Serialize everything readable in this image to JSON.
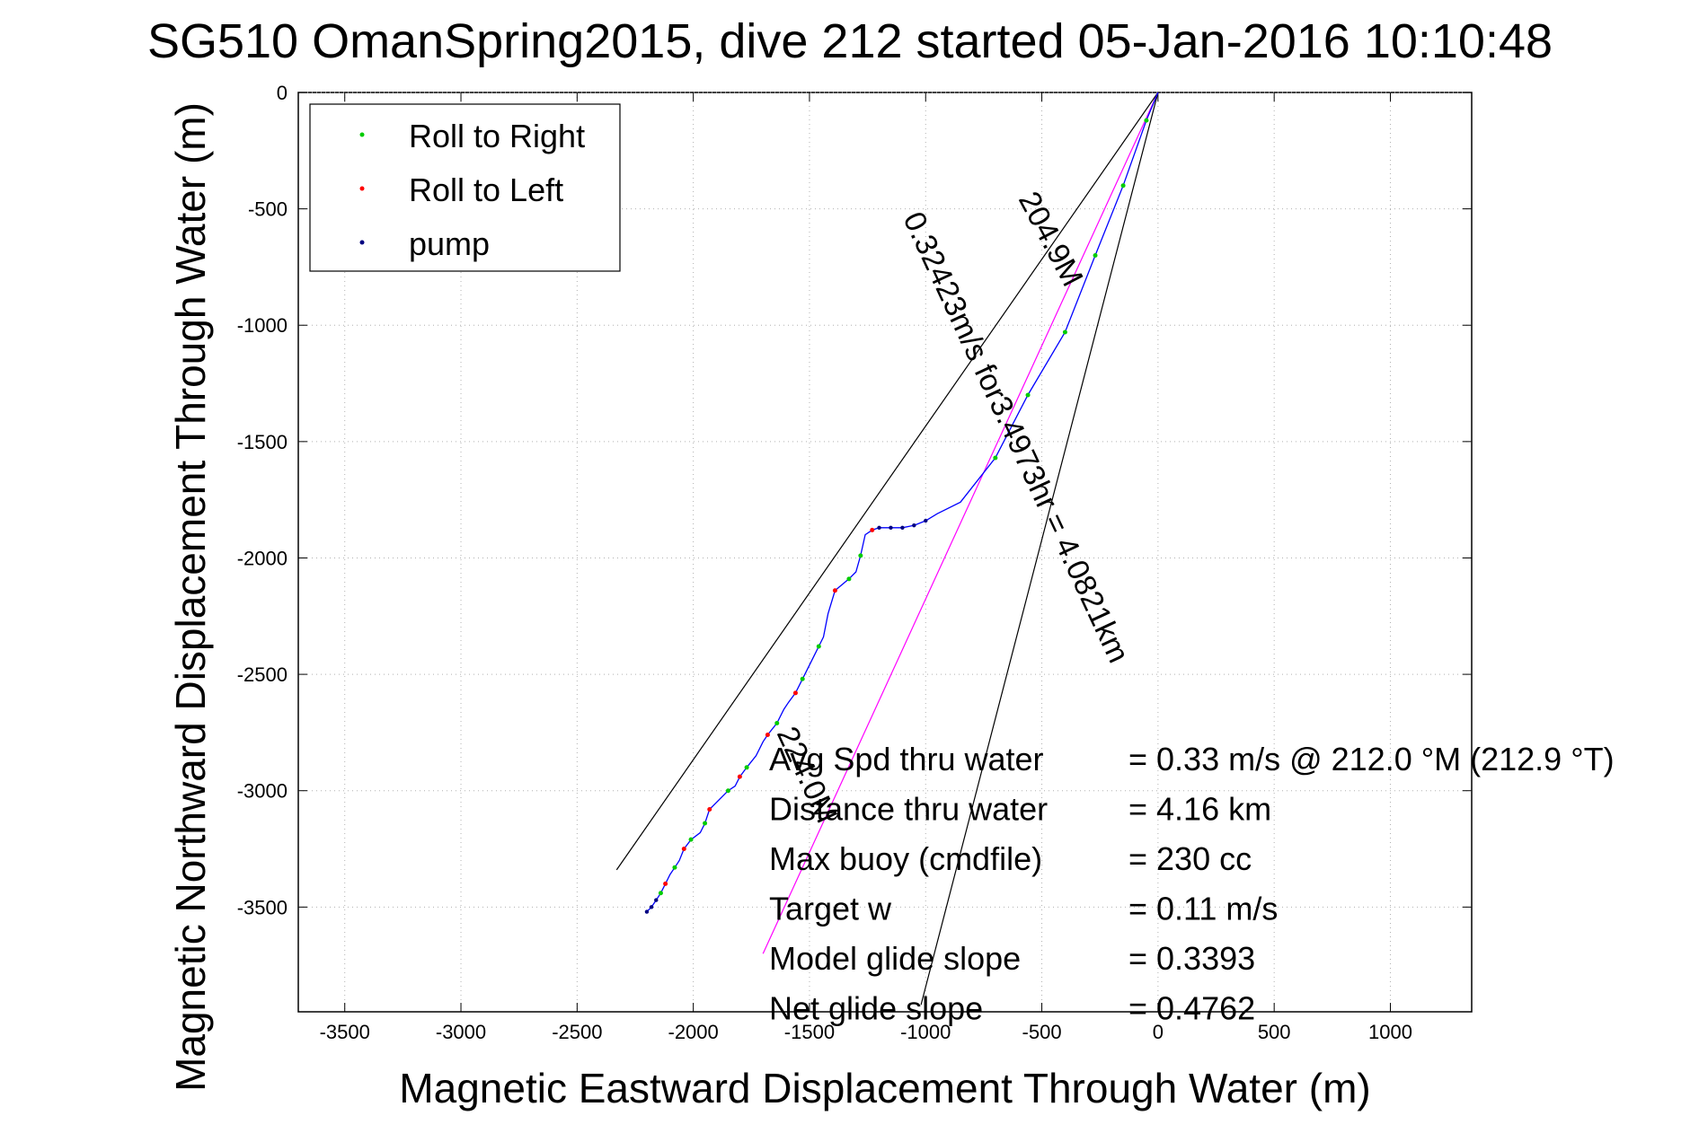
{
  "chart_data": {
    "type": "line",
    "title": "SG510 OmanSpring2015, dive 212 started 05-Jan-2016 10:10:48",
    "xlabel": "Magnetic Eastward Displacement Through Water (m)",
    "ylabel": "Magnetic Northward Displacement Through Water (m)",
    "xlim": [
      -3700,
      1350
    ],
    "ylim": [
      -3950,
      0
    ],
    "xticks": [
      -3500,
      -3000,
      -2500,
      -2000,
      -1500,
      -1000,
      -500,
      0,
      500,
      1000
    ],
    "yticks": [
      0,
      -500,
      -1000,
      -1500,
      -2000,
      -2500,
      -3000,
      -3500
    ],
    "grid": true,
    "legend_position": "top-left",
    "legend": [
      {
        "label": "Roll to Right",
        "color": "#00cc00"
      },
      {
        "label": "Roll to Left",
        "color": "#ff0000"
      },
      {
        "label": "pump",
        "color": "#000080"
      }
    ],
    "colors": {
      "track": "#0000ff",
      "heading_line": "#ff00ff",
      "cone_lines": "#000000",
      "roll_right": "#00cc00",
      "roll_left": "#ff0000",
      "pump": "#000080"
    },
    "track": {
      "x": [
        0,
        -50,
        -150,
        -270,
        -400,
        -560,
        -700,
        -850,
        -950,
        -1000,
        -1050,
        -1100,
        -1200,
        -1230,
        -1260,
        -1280,
        -1300,
        -1330,
        -1390,
        -1420,
        -1440,
        -1460,
        -1480,
        -1530,
        -1560,
        -1590,
        -1610,
        -1640,
        -1680,
        -1700,
        -1730,
        -1770,
        -1800,
        -1820,
        -1850,
        -1900,
        -1930,
        -1950,
        -1970,
        -2010,
        -2040,
        -2060,
        -2080,
        -2100,
        -2120,
        -2140,
        -2160,
        -2180,
        -2200
      ],
      "y": [
        0,
        -120,
        -400,
        -700,
        -1030,
        -1300,
        -1570,
        -1760,
        -1810,
        -1840,
        -1860,
        -1870,
        -1870,
        -1880,
        -1900,
        -1990,
        -2060,
        -2090,
        -2140,
        -2240,
        -2340,
        -2380,
        -2420,
        -2520,
        -2580,
        -2620,
        -2650,
        -2710,
        -2760,
        -2790,
        -2850,
        -2900,
        -2940,
        -2980,
        -3000,
        -3050,
        -3080,
        -3140,
        -3180,
        -3210,
        -3250,
        -3300,
        -3330,
        -3360,
        -3400,
        -3440,
        -3470,
        -3500,
        -3520
      ]
    },
    "roll_right_points": {
      "x": [
        -50,
        -150,
        -270,
        -400,
        -560,
        -700,
        -1280,
        -1330,
        -1460,
        -1530,
        -1640,
        -1770,
        -1850,
        -1950,
        -2010,
        -2080,
        -2140
      ],
      "y": [
        -120,
        -400,
        -700,
        -1030,
        -1300,
        -1570,
        -1990,
        -2090,
        -2380,
        -2520,
        -2710,
        -2900,
        -3000,
        -3140,
        -3210,
        -3330,
        -3440
      ]
    },
    "roll_left_points": {
      "x": [
        -1230,
        -1390,
        -1560,
        -1680,
        -1800,
        -1930,
        -2040,
        -2120
      ],
      "y": [
        -1880,
        -2140,
        -2580,
        -2760,
        -2940,
        -3080,
        -3250,
        -3400
      ]
    },
    "pump_points": {
      "x": [
        -1000,
        -1050,
        -1100,
        -1150,
        -1200,
        -2160,
        -2180,
        -2200
      ],
      "y": [
        -1840,
        -1860,
        -1870,
        -1870,
        -1870,
        -3470,
        -3500,
        -3520
      ]
    },
    "heading_line": {
      "x": [
        0,
        -1700
      ],
      "y": [
        0,
        -3700
      ]
    },
    "cone_lines": [
      {
        "x": [
          0,
          -2330
        ],
        "y": [
          0,
          -3340
        ]
      },
      {
        "x": [
          0,
          -1020
        ],
        "y": [
          0,
          -3920
        ]
      }
    ],
    "annotations": [
      {
        "text": "204.9M",
        "x": -500,
        "y": -650,
        "rotate": 62
      },
      {
        "text": "0.32423m/s for3.4973hr = 4.0821km",
        "x": -650,
        "y": -1500,
        "rotate": 65
      },
      {
        "text": "224.0M",
        "x": -1550,
        "y": -2950,
        "rotate": 65
      }
    ],
    "info_box": [
      {
        "label": "Avg Spd thru water",
        "value": "=  0.33 m/s @ 212.0 °M (212.9 °T)"
      },
      {
        "label": "Distance thru water",
        "value": "=  4.16 km"
      },
      {
        "label": "Max buoy (cmdfile)",
        "value": "= 230 cc"
      },
      {
        "label": "Target w",
        "value": "= 0.11 m/s"
      },
      {
        "label": "Model glide slope",
        "value": "= 0.3393"
      },
      {
        "label": "Net glide slope",
        "value": "= 0.4762"
      }
    ]
  }
}
